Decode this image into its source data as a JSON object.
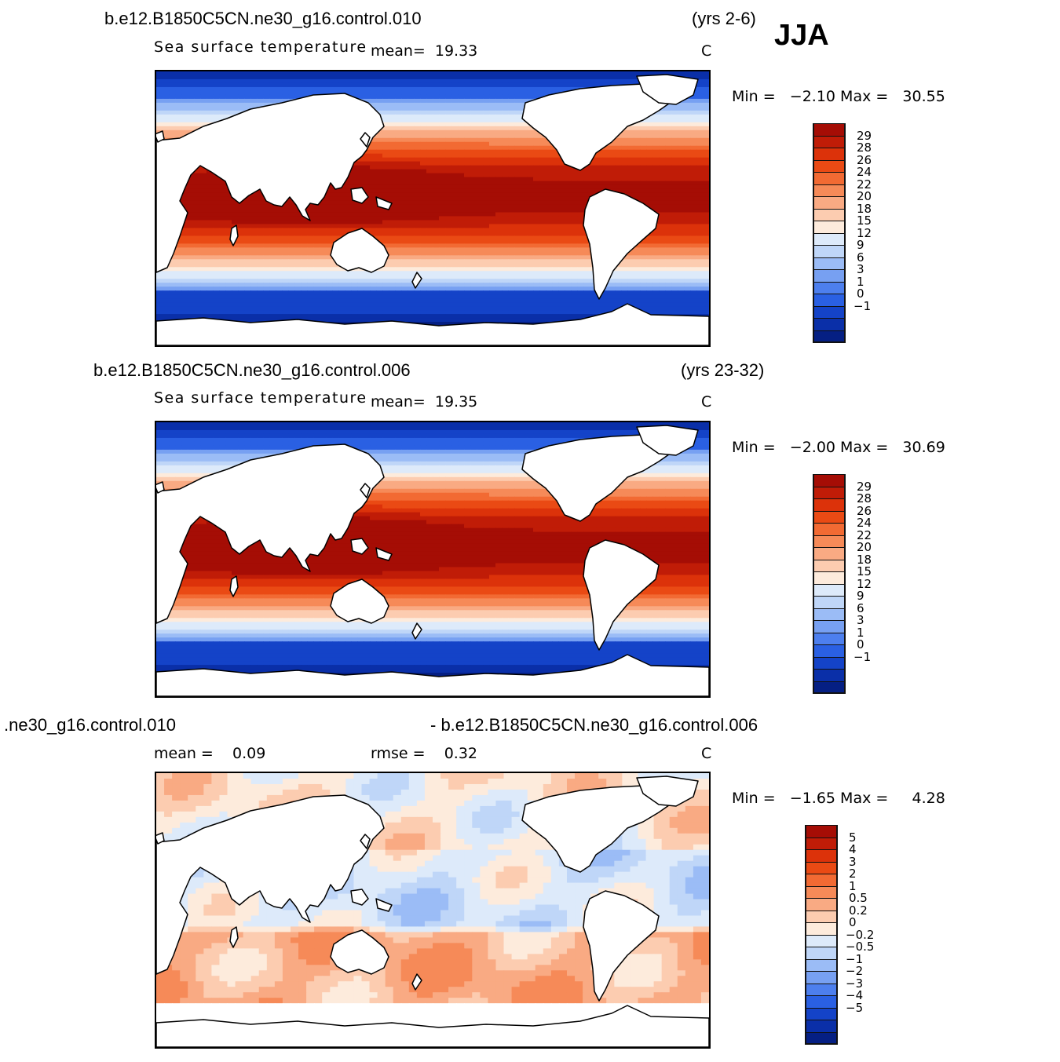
{
  "season": "JJA",
  "panels": [
    {
      "case": "b.e12.B1850C5CN.ne30_g16.control.010",
      "years": "(yrs 2-6)",
      "field": "Sea surface temperature",
      "stat1": "mean=  19.33",
      "stat2": "",
      "units": "C",
      "minmax": "Min =   −2.10 Max =   30.55",
      "colorbar": {
        "labels": [
          "29",
          "28",
          "26",
          "24",
          "22",
          "20",
          "18",
          "15",
          "12",
          "9",
          "6",
          "3",
          "1",
          "0",
          "−1"
        ],
        "colors": [
          "#a50d05",
          "#c01c07",
          "#dc320a",
          "#ea4a14",
          "#f26a33",
          "#f68a58",
          "#f9aa83",
          "#fcccb0",
          "#fdebdc",
          "#ddeafa",
          "#bfd6f8",
          "#9bbcf6",
          "#77a0f2",
          "#4d7fee",
          "#2a60e3",
          "#1443c8",
          "#0a2fa8",
          "#051f83"
        ]
      },
      "map_type": "sst"
    },
    {
      "case": "b.e12.B1850C5CN.ne30_g16.control.006",
      "years": "(yrs 23-32)",
      "field": "Sea surface temperature",
      "stat1": "mean=  19.35",
      "stat2": "",
      "units": "C",
      "minmax": "Min =   −2.00 Max =   30.69",
      "colorbar": {
        "labels": [
          "29",
          "28",
          "26",
          "24",
          "22",
          "20",
          "18",
          "15",
          "12",
          "9",
          "6",
          "3",
          "1",
          "0",
          "−1"
        ],
        "colors": [
          "#a50d05",
          "#c01c07",
          "#dc320a",
          "#ea4a14",
          "#f26a33",
          "#f68a58",
          "#f9aa83",
          "#fcccb0",
          "#fdebdc",
          "#ddeafa",
          "#bfd6f8",
          "#9bbcf6",
          "#77a0f2",
          "#4d7fee",
          "#2a60e3",
          "#1443c8",
          "#0a2fa8",
          "#051f83"
        ]
      },
      "map_type": "sst"
    },
    {
      "case": ".ne30_g16.control.010",
      "years": "- b.e12.B1850C5CN.ne30_g16.control.006",
      "field": "",
      "stat1": "mean =    0.09",
      "stat2": "rmse =    0.32",
      "units": "C",
      "minmax": "Min =   −1.65 Max =     4.28",
      "colorbar": {
        "labels": [
          "5",
          "4",
          "3",
          "2",
          "1",
          "0.5",
          "0.2",
          "0",
          "−0.2",
          "−0.5",
          "−1",
          "−2",
          "−3",
          "−4",
          "−5"
        ],
        "colors": [
          "#a50d05",
          "#c01c07",
          "#dc320a",
          "#ea4a14",
          "#f26a33",
          "#f68a58",
          "#f9aa83",
          "#fcccb0",
          "#fdebdc",
          "#ddeafa",
          "#bfd6f8",
          "#9bbcf6",
          "#77a0f2",
          "#4d7fee",
          "#2a60e3",
          "#1443c8",
          "#0a2fa8",
          "#051f83"
        ]
      },
      "map_type": "diff"
    }
  ]
}
